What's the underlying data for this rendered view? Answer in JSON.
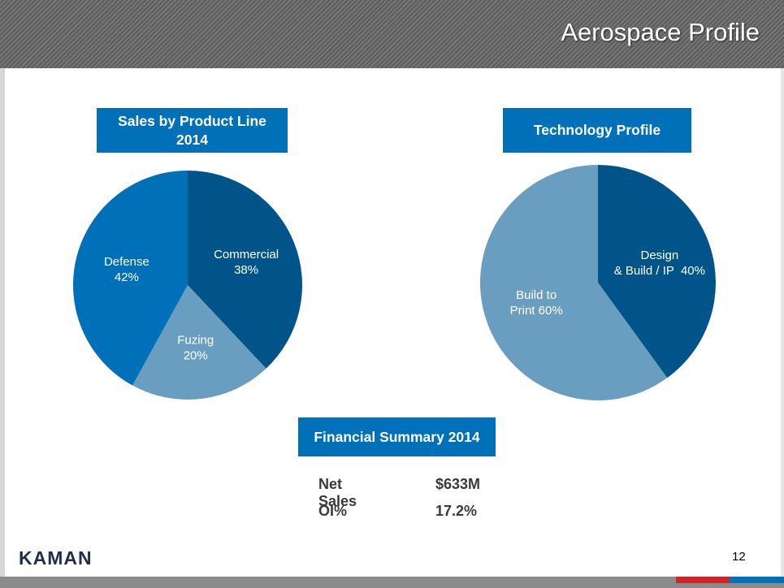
{
  "slide": {
    "title": "Aerospace Profile",
    "page_number": "12",
    "logo_text": "KAMAN"
  },
  "colors": {
    "title_box": "#0070b8",
    "commercial": "#00548a",
    "fuzing": "#6a9ec0",
    "defense": "#0070b8",
    "design_build": "#00548a",
    "build_to_print": "#6a9ec0",
    "footer_red": "#d2232a",
    "footer_blue": "#0070b8"
  },
  "chart_data": [
    {
      "type": "pie",
      "title": "Sales by Product Line 2014",
      "title_lines": [
        "Sales by Product Line",
        "2014"
      ],
      "slices": [
        {
          "key": "commercial",
          "label_lines": [
            "Commercial",
            "38%"
          ],
          "value": 38
        },
        {
          "key": "fuzing",
          "label_lines": [
            "Fuzing",
            "20%"
          ],
          "value": 20
        },
        {
          "key": "defense",
          "label_lines": [
            "Defense",
            "42%"
          ],
          "value": 42
        }
      ]
    },
    {
      "type": "pie",
      "title": "Technology Profile",
      "slices": [
        {
          "key": "design_build",
          "label_lines": [
            "Design",
            "& Build / IP  40%"
          ],
          "value": 40
        },
        {
          "key": "build_to_print",
          "label_lines": [
            "Build to",
            "Print 60%"
          ],
          "value": 60
        }
      ]
    }
  ],
  "financial_summary": {
    "title": "Financial Summary 2014",
    "rows": [
      {
        "label": "Net Sales",
        "value": "$633M"
      },
      {
        "label": "OI%",
        "value": "17.2%"
      }
    ]
  }
}
